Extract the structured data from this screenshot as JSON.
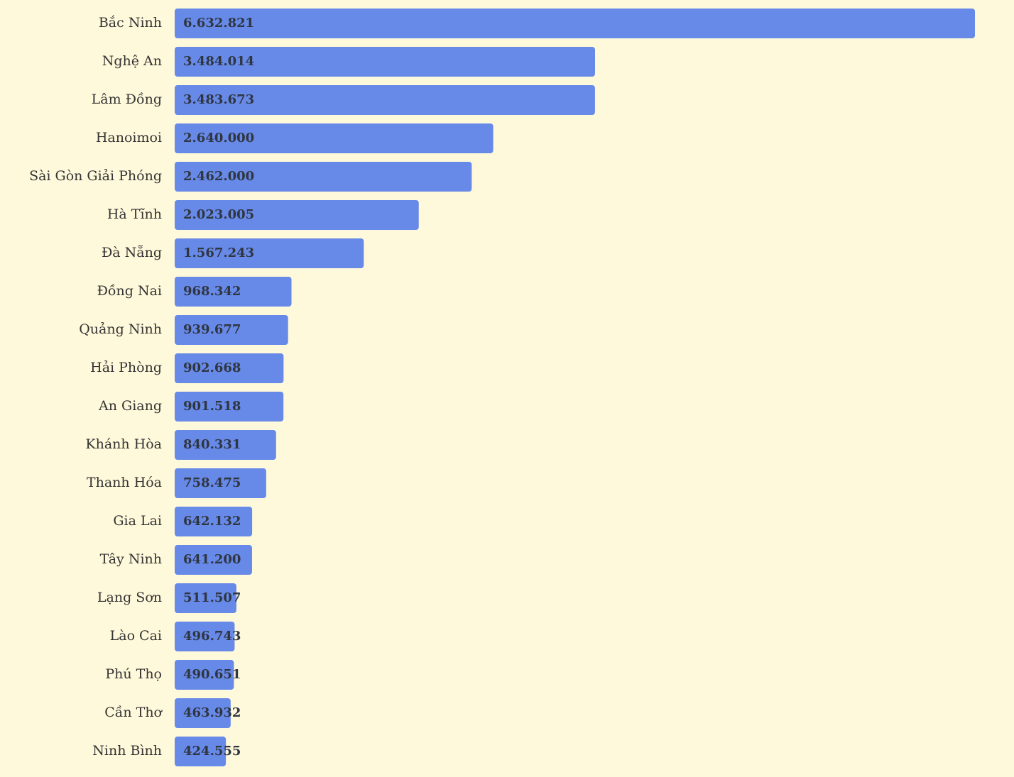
{
  "chart_data": {
    "type": "bar",
    "orientation": "horizontal",
    "color": "#6789e8",
    "categories": [
      "Bắc Ninh",
      "Nghệ An",
      "Lâm Đồng",
      "Hanoimoi",
      "Sài Gòn Giải Phóng",
      "Hà Tĩnh",
      "Đà Nẵng",
      "Đồng Nai",
      "Quảng Ninh",
      "Hải Phòng",
      "An Giang",
      "Khánh Hòa",
      "Thanh Hóa",
      "Gia Lai",
      "Tây Ninh",
      "Lạng Sơn",
      "Lào Cai",
      "Phú Thọ",
      "Cần Thơ",
      "Ninh Bình"
    ],
    "values": [
      6632821,
      3484014,
      3483673,
      2640000,
      2462000,
      2023005,
      1567243,
      968342,
      939677,
      902668,
      901518,
      840331,
      758475,
      642132,
      641200,
      511507,
      496743,
      490651,
      463932,
      424555
    ],
    "value_labels": [
      "6.632.821",
      "3.484.014",
      "3.483.673",
      "2.640.000",
      "2.462.000",
      "2.023.005",
      "1.567.243",
      "968.342",
      "939.677",
      "902.668",
      "901.518",
      "840.331",
      "758.475",
      "642.132",
      "641.200",
      "511.507",
      "496.743",
      "490.651",
      "463.932",
      "424.555"
    ]
  }
}
